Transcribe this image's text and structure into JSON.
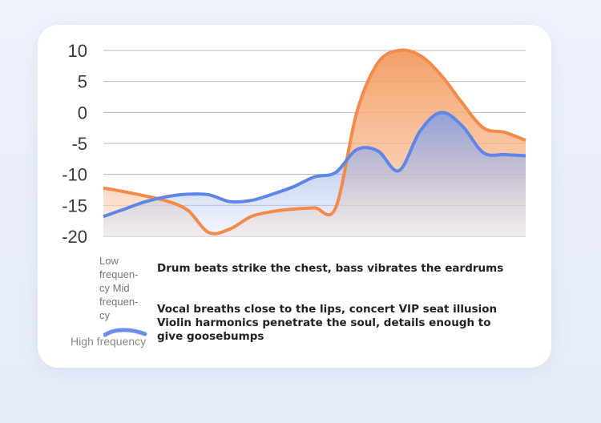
{
  "chart_data": {
    "type": "area",
    "ylim": [
      -20,
      10
    ],
    "yticks": [
      10,
      5,
      0,
      -5,
      -10,
      -15,
      -20
    ],
    "x": [
      0,
      5,
      10,
      15,
      20,
      25,
      30,
      35,
      40,
      45,
      50,
      55,
      60,
      65,
      70,
      75,
      80,
      85,
      90,
      95,
      100
    ],
    "series": [
      {
        "color": "#f28a4c",
        "fill_top": "#f39a5c",
        "values": [
          -12.2,
          -12.8,
          -13.5,
          -14.3,
          -15.8,
          -19.4,
          -18.8,
          -16.8,
          -16.0,
          -15.6,
          -15.4,
          -15.4,
          0,
          8.0,
          10.0,
          9.2,
          6.0,
          1.5,
          -2.5,
          -3.2,
          -4.5
        ]
      },
      {
        "color": "#5f86e6",
        "fill_top": "#7d9de8",
        "values": [
          -16.8,
          -15.6,
          -14.4,
          -13.6,
          -13.2,
          -13.3,
          -14.4,
          -14.2,
          -13.2,
          -12.0,
          -10.4,
          -9.7,
          -6.0,
          -6.2,
          -9.4,
          -3.0,
          0.0,
          -2.2,
          -6.5,
          -6.8,
          -7.0
        ]
      }
    ],
    "legend": [
      {
        "band": "Low frequency",
        "band_lines": [
          "Low",
          "frequen-",
          "cy"
        ],
        "text": "Drum beats strike the chest, bass vibrates the eardrums"
      },
      {
        "band": "Mid frequency",
        "band_lines": [
          "Mid",
          "frequen-",
          "cy"
        ],
        "text": "Vocal breaths close to the lips, concert VIP seat illusion"
      },
      {
        "band": "High frequency",
        "band_lines": [
          "High frequency"
        ],
        "text": "Violin harmonics penetrate the soul, details enough to give goosebumps"
      }
    ]
  }
}
